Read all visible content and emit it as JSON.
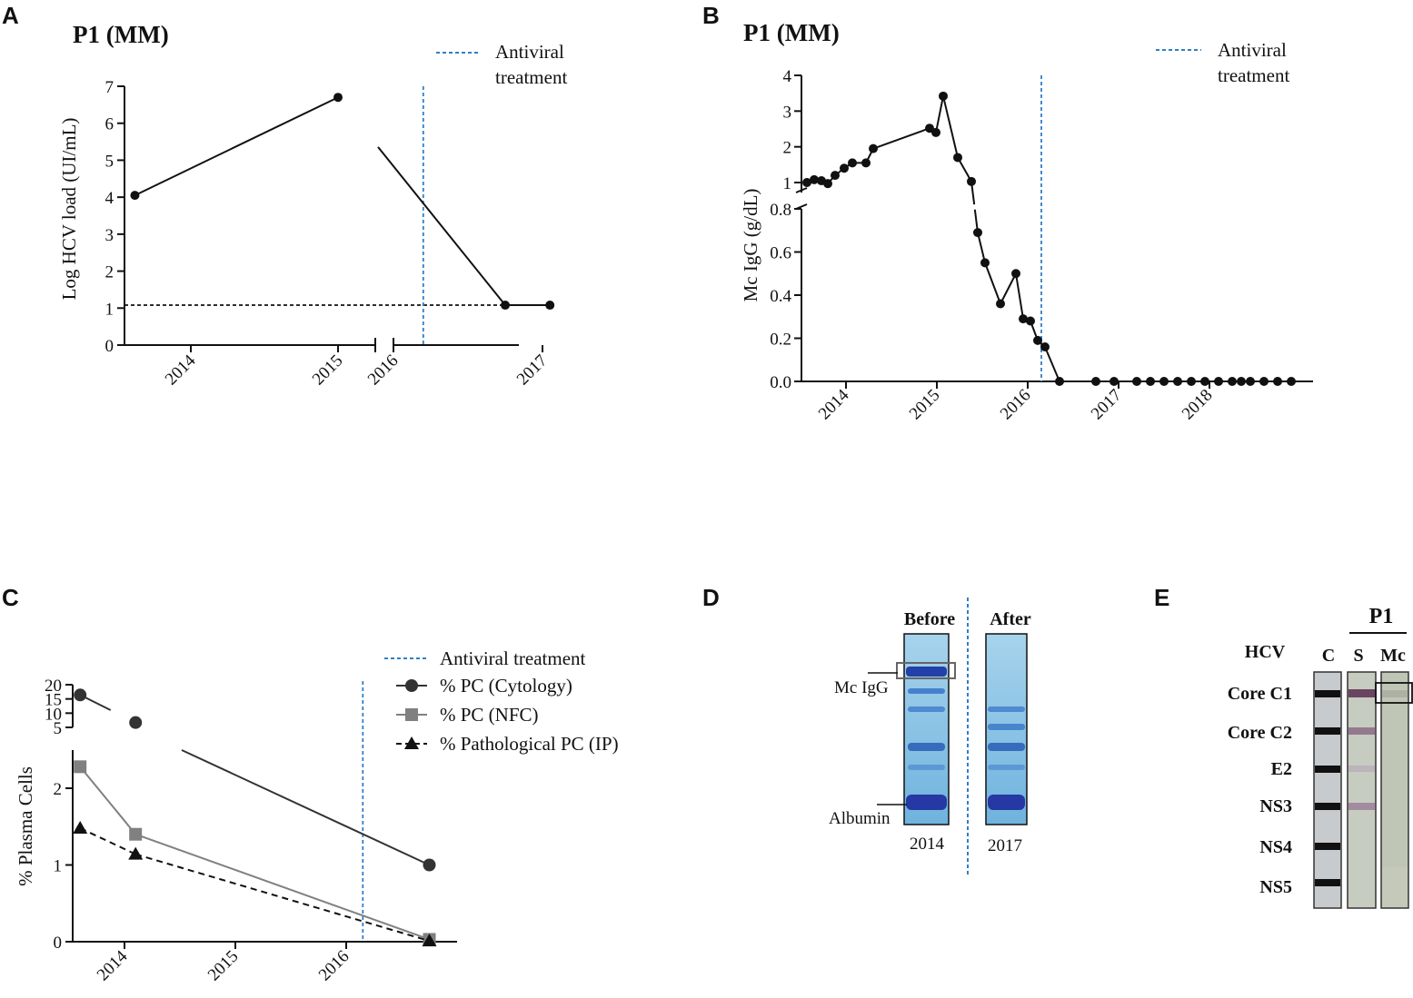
{
  "panel_letters": {
    "a": "A",
    "b": "B",
    "c": "C",
    "d": "D",
    "e": "E"
  },
  "colors": {
    "treatment": "#2f7fc8",
    "black": "#111111",
    "gray": "#808080",
    "dark": "#333333"
  },
  "chart_data": [
    {
      "id": "A",
      "type": "line",
      "title": "P1 (MM)",
      "ylabel": "Log HCV load (UI/mL)",
      "xlabel": "",
      "ylim": [
        0,
        7
      ],
      "yticks": [
        "0",
        "1",
        "2",
        "3",
        "4",
        "5",
        "6",
        "7"
      ],
      "xticks": [
        "2014",
        "2015",
        "2016",
        "2017"
      ],
      "x_axis_break": "between 2015 and 2016",
      "legend": {
        "label": "Antiviral treatment",
        "line1": "Antiviral",
        "line2": "treatment",
        "position": "top-right"
      },
      "treatment_line_x": 2016.2,
      "detection_limit": 1.08,
      "series": [
        {
          "name": "Log HCV load",
          "x": [
            2013.62,
            2015.0,
            2016.75,
            2017.05
          ],
          "y": [
            4.05,
            6.7,
            1.08,
            1.08
          ]
        }
      ]
    },
    {
      "id": "B",
      "type": "line",
      "title": "P1 (MM)",
      "ylabel": "Mc IgG (g/dL)",
      "xlabel": "",
      "ylim_upper": [
        0.8,
        4
      ],
      "yticks_upper": [
        "1",
        "2",
        "3",
        "4"
      ],
      "ylim_lower": [
        0,
        0.8
      ],
      "yticks_lower": [
        "0.0",
        "0.2",
        "0.4",
        "0.6",
        "0.8"
      ],
      "xticks": [
        "2014",
        "2015",
        "2016",
        "2017",
        "2018"
      ],
      "legend": {
        "label": "Antiviral treatment",
        "line1": "Antiviral",
        "line2": "treatment",
        "position": "top-right"
      },
      "treatment_line_x": 2016.15,
      "series": [
        {
          "name": "Mc IgG",
          "x": [
            2013.57,
            2013.65,
            2013.73,
            2013.8,
            2013.88,
            2013.98,
            2014.07,
            2014.22,
            2014.3,
            2014.92,
            2014.99,
            2015.07,
            2015.23,
            2015.38,
            2015.45,
            2015.53,
            2015.7,
            2015.87,
            2015.95,
            2016.03,
            2016.11,
            2016.19,
            2016.35,
            2016.75,
            2016.95,
            2017.2,
            2017.35,
            2017.5,
            2017.65,
            2017.8,
            2017.95,
            2018.1,
            2018.25,
            2018.35,
            2018.45,
            2018.6,
            2018.75,
            2018.9
          ],
          "y": [
            1.0,
            1.08,
            1.05,
            0.97,
            1.2,
            1.4,
            1.55,
            1.55,
            1.95,
            2.52,
            2.4,
            3.42,
            1.7,
            1.03,
            0.69,
            0.55,
            0.36,
            0.5,
            0.29,
            0.28,
            0.19,
            0.16,
            0.0,
            0.0,
            0.0,
            0.0,
            0.0,
            0.0,
            0.0,
            0.0,
            0.0,
            0.0,
            0.0,
            0.0,
            0.0,
            0.0,
            0.0,
            0.0
          ]
        }
      ]
    },
    {
      "id": "C",
      "type": "line",
      "title": "",
      "ylabel": "% Plasma Cells",
      "xlabel": "",
      "ylim_upper": [
        5,
        20
      ],
      "yticks_upper": [
        "5",
        "10",
        "15",
        "20"
      ],
      "ylim_lower": [
        0,
        2.5
      ],
      "yticks_lower": [
        "0",
        "1",
        "2"
      ],
      "xticks": [
        "2014",
        "2015",
        "2016"
      ],
      "legend_position": "top-right",
      "treatment_line_x": 2016.15,
      "series": [
        {
          "name": "% PC (Cytology)",
          "marker": "circle",
          "x": [
            2013.6,
            2014.1,
            2016.75
          ],
          "y": [
            16.4,
            6.7,
            1.0
          ]
        },
        {
          "name": "% PC (NFC)",
          "marker": "square",
          "x": [
            2013.6,
            2014.1,
            2016.75
          ],
          "y": [
            2.28,
            1.4,
            0.03
          ]
        },
        {
          "name": "% Pathological PC (IP)",
          "marker": "triangle",
          "x": [
            2013.6,
            2014.1,
            2016.75
          ],
          "y": [
            1.48,
            1.14,
            0.01
          ]
        }
      ],
      "legend": [
        "Antiviral treatment",
        "% PC (Cytology)",
        "% PC (NFC)",
        "% Pathological PC (IP)"
      ]
    }
  ],
  "panel_d": {
    "lanes": [
      {
        "header": "Before",
        "year": "2014"
      },
      {
        "header": "After",
        "year": "2017"
      }
    ],
    "labels": {
      "mc_igg": "Mc IgG",
      "albumin": "Albumin"
    }
  },
  "panel_e": {
    "patient": "P1",
    "hcv_label": "HCV",
    "strips": [
      "C",
      "S",
      "Mc"
    ],
    "bands": [
      "Core C1",
      "Core C2",
      "E2",
      "NS3",
      "NS4",
      "NS5"
    ]
  }
}
